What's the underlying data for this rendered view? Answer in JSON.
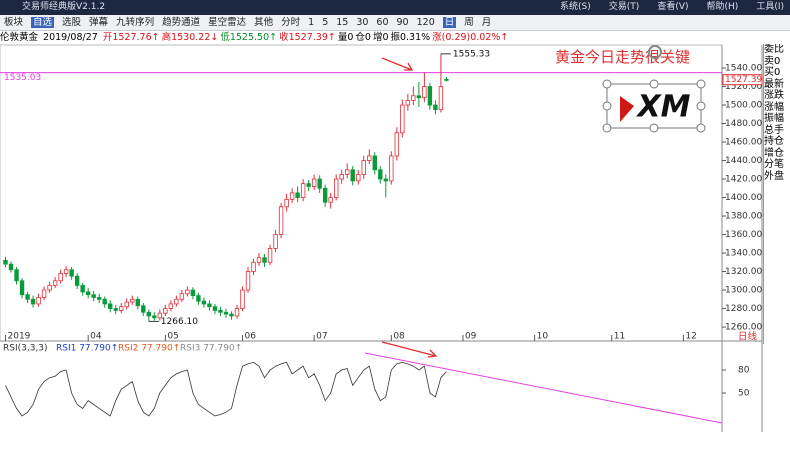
{
  "app": {
    "title": "交易师经典版V2.1.2",
    "menu": [
      "系统(S)",
      "交易(T)",
      "查看(V)",
      "帮助(H)",
      "工具(I)"
    ]
  },
  "toolbar": [
    "板块",
    "自选",
    "选股",
    "弹幕",
    "九转序列",
    "趋势通道",
    "星空雷达",
    "其他",
    "分时",
    "1",
    "5",
    "15",
    "30",
    "60",
    "90",
    "120",
    "日",
    "周",
    "月"
  ],
  "info": {
    "name": "伦敦黄金",
    "date": "2019/08/27",
    "fields": [
      {
        "text": "开1527.76↑",
        "color": "#d8141c"
      },
      {
        "text": "高1530.22↓",
        "color": "#d8141c"
      },
      {
        "text": "低1525.50↑",
        "color": "#0a8a2a"
      },
      {
        "text": "收1527.39↑",
        "color": "#d8141c"
      },
      {
        "text": "量0",
        "color": "#000"
      },
      {
        "text": "仓0",
        "color": "#000"
      },
      {
        "text": "增0",
        "color": "#000"
      },
      {
        "text": "振0.31%",
        "color": "#000"
      },
      {
        "text": "涨(0.29)0.02%↑",
        "color": "#d8141c"
      }
    ]
  },
  "side_panel": [
    "委比",
    "卖0",
    "买0",
    "最新",
    "涨跌",
    "涨幅",
    "振幅",
    "总手",
    "持仓",
    "增仓",
    "分笔",
    "外盘"
  ],
  "annotation_text": "黄金今日走势很关键",
  "logo": "XM",
  "period_label": "日线",
  "chart_data": [
    {
      "type": "candlestick",
      "up_color": "#e0303a",
      "down_color": "#0a9a3a",
      "series": [
        {
          "name": "open",
          "values": [
            1332,
            1328,
            1322,
            1310,
            1295,
            1290,
            1285,
            1292,
            1300,
            1305,
            1310,
            1318,
            1322,
            1315,
            1305,
            1298,
            1295,
            1292,
            1290,
            1285,
            1280,
            1278,
            1282,
            1287,
            1290,
            1283,
            1276,
            1272,
            1270,
            1275,
            1280,
            1285,
            1290,
            1296,
            1300,
            1294,
            1288,
            1285,
            1282,
            1278,
            1276,
            1274,
            1272,
            1280,
            1300,
            1320,
            1330,
            1335,
            1330,
            1345,
            1360,
            1390,
            1398,
            1405,
            1400,
            1415,
            1412,
            1420,
            1410,
            1395,
            1400,
            1420,
            1425,
            1430,
            1418,
            1425,
            1440,
            1445,
            1430,
            1420,
            1418,
            1445,
            1470,
            1500,
            1505,
            1510,
            1508,
            1520,
            1500,
            1495,
            1527.76
          ]
        },
        {
          "name": "high",
          "values": [
            1336,
            1331,
            1325,
            1313,
            1298,
            1294,
            1296,
            1304,
            1309,
            1314,
            1322,
            1326,
            1325,
            1318,
            1308,
            1302,
            1299,
            1296,
            1293,
            1289,
            1284,
            1286,
            1291,
            1294,
            1293,
            1286,
            1279,
            1276,
            1279,
            1284,
            1289,
            1294,
            1300,
            1304,
            1303,
            1297,
            1292,
            1289,
            1285,
            1282,
            1280,
            1277,
            1284,
            1304,
            1325,
            1334,
            1340,
            1339,
            1349,
            1365,
            1394,
            1404,
            1410,
            1412,
            1420,
            1419,
            1425,
            1424,
            1414,
            1405,
            1425,
            1430,
            1437,
            1434,
            1430,
            1445,
            1452,
            1449,
            1434,
            1425,
            1450,
            1476,
            1506,
            1512,
            1520,
            1525,
            1535,
            1524,
            1505,
            1555.33,
            1530.22
          ]
        },
        {
          "name": "low",
          "values": [
            1325,
            1319,
            1306,
            1291,
            1286,
            1281,
            1282,
            1289,
            1297,
            1302,
            1307,
            1314,
            1311,
            1301,
            1294,
            1291,
            1288,
            1286,
            1281,
            1276,
            1274,
            1275,
            1279,
            1284,
            1279,
            1272,
            1266.1,
            1267,
            1267,
            1272,
            1277,
            1282,
            1287,
            1293,
            1290,
            1284,
            1281,
            1278,
            1274,
            1272,
            1270,
            1268,
            1269,
            1277,
            1297,
            1316,
            1326,
            1325,
            1327,
            1341,
            1356,
            1385,
            1394,
            1395,
            1396,
            1407,
            1408,
            1405,
            1390,
            1388,
            1397,
            1415,
            1421,
            1413,
            1414,
            1420,
            1436,
            1425,
            1415,
            1400,
            1414,
            1440,
            1465,
            1494,
            1500,
            1498,
            1503,
            1495,
            1490,
            1492,
            1525.5
          ]
        },
        {
          "name": "close",
          "values": [
            1328,
            1322,
            1310,
            1295,
            1290,
            1285,
            1292,
            1300,
            1305,
            1310,
            1318,
            1322,
            1315,
            1305,
            1298,
            1295,
            1292,
            1290,
            1285,
            1280,
            1278,
            1282,
            1287,
            1290,
            1283,
            1276,
            1272,
            1270,
            1275,
            1280,
            1285,
            1290,
            1296,
            1300,
            1294,
            1288,
            1285,
            1282,
            1278,
            1276,
            1274,
            1272,
            1280,
            1300,
            1320,
            1330,
            1335,
            1330,
            1345,
            1360,
            1390,
            1398,
            1405,
            1400,
            1415,
            1412,
            1420,
            1410,
            1395,
            1400,
            1420,
            1425,
            1430,
            1418,
            1425,
            1440,
            1445,
            1430,
            1420,
            1418,
            1445,
            1470,
            1500,
            1505,
            1510,
            1508,
            1520,
            1500,
            1495,
            1520,
            1527.39
          ]
        }
      ],
      "xlim": [
        -1,
        130
      ],
      "xticks": [
        {
          "value": 0,
          "label": "2019"
        },
        {
          "value": 15,
          "label": "04"
        },
        {
          "value": 29,
          "label": "05"
        },
        {
          "value": 43,
          "label": "06"
        },
        {
          "value": 56,
          "label": "07"
        },
        {
          "value": 70,
          "label": "08"
        },
        {
          "value": 83,
          "label": "09"
        },
        {
          "value": 96,
          "label": "10"
        },
        {
          "value": 110,
          "label": "11"
        },
        {
          "value": 123,
          "label": "12"
        }
      ],
      "ylim": [
        1251.4,
        1564.9
      ],
      "yticks": [
        {
          "value": 1260,
          "label": "1260.00"
        },
        {
          "value": 1280,
          "label": "1280.00"
        },
        {
          "value": 1300,
          "label": "1300.00"
        },
        {
          "value": 1320,
          "label": "1320.00"
        },
        {
          "value": 1340,
          "label": "1340.00"
        },
        {
          "value": 1360,
          "label": "1360.00"
        },
        {
          "value": 1380,
          "label": "1380.00"
        },
        {
          "value": 1400,
          "label": "1400.00"
        },
        {
          "value": 1420,
          "label": "1420.00"
        },
        {
          "value": 1440,
          "label": "1440.00"
        },
        {
          "value": 1460,
          "label": "1460.00"
        },
        {
          "value": 1480,
          "label": "1480.00"
        },
        {
          "value": 1500,
          "label": "1500.00"
        },
        {
          "value": 1520,
          "label": "1520.00"
        },
        {
          "value": 1540,
          "label": "1540.00"
        }
      ],
      "hline": {
        "value": 1535.03,
        "label": "1535.03",
        "color": "#e040e0"
      },
      "last_price": {
        "value": 1527.39,
        "label": "1527.39"
      },
      "annotations": [
        {
          "text": "1555.33",
          "x": 79,
          "y": 1555.33
        },
        {
          "text": "1266.10",
          "x": 26,
          "y": 1266.1
        }
      ]
    },
    {
      "type": "line",
      "title": "RSI(3,3,3)",
      "series": [
        {
          "name": "RSI1",
          "label": "RSI1 77.790↑",
          "color": "#333333",
          "values": [
            60,
            45,
            30,
            20,
            25,
            35,
            55,
            65,
            70,
            72,
            78,
            80,
            50,
            35,
            30,
            40,
            35,
            30,
            25,
            20,
            40,
            55,
            60,
            65,
            40,
            25,
            20,
            30,
            50,
            60,
            70,
            75,
            78,
            80,
            50,
            35,
            30,
            25,
            20,
            22,
            25,
            30,
            60,
            85,
            88,
            90,
            85,
            70,
            80,
            85,
            88,
            90,
            75,
            80,
            85,
            70,
            75,
            60,
            40,
            50,
            75,
            80,
            82,
            60,
            70,
            80,
            85,
            55,
            40,
            45,
            80,
            88,
            90,
            88,
            85,
            80,
            85,
            50,
            45,
            70,
            77.79
          ]
        }
      ],
      "legend_extra": [
        {
          "text": "RSI2 77.790↑",
          "color": "#e05a1a"
        },
        {
          "text": "RSI3 77.790↑",
          "color": "#888888"
        }
      ],
      "xlim": [
        -1,
        130
      ],
      "ylim": [
        -0.8,
        103.5
      ],
      "yticks": [
        50,
        80
      ]
    }
  ]
}
